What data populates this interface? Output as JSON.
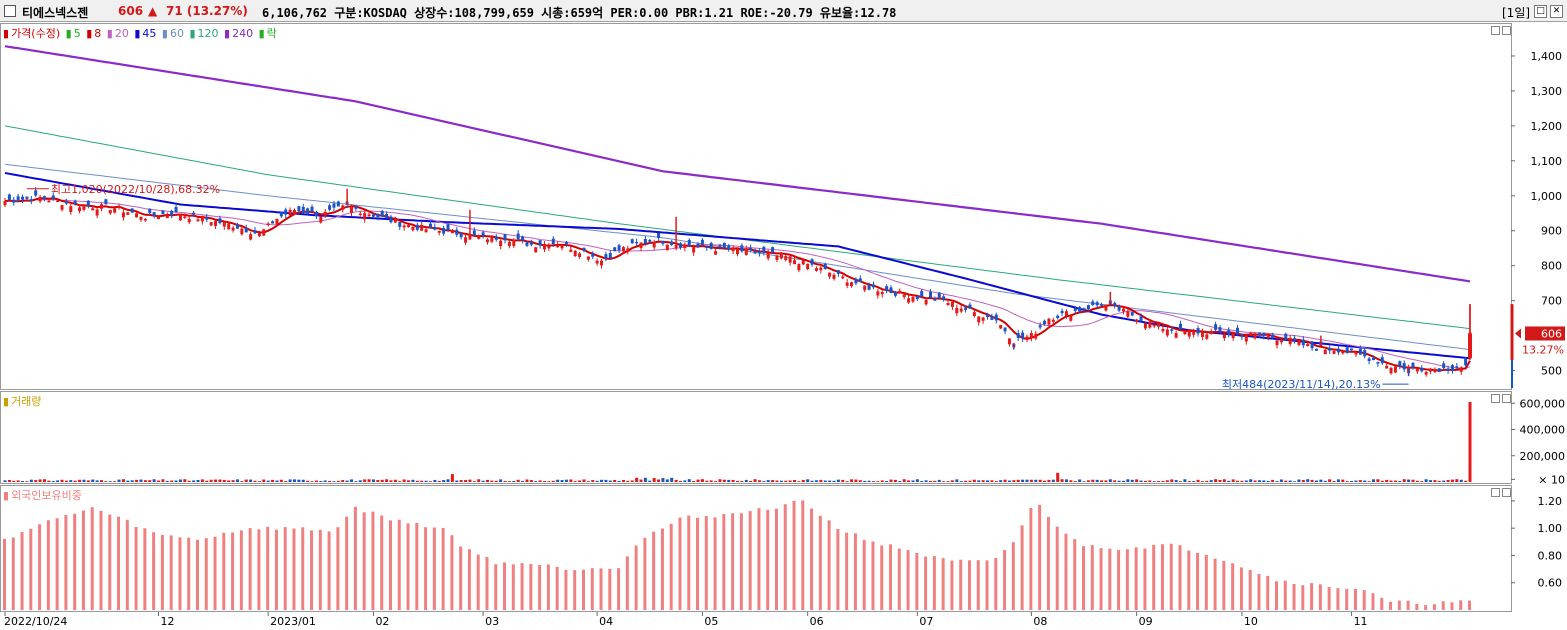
{
  "header": {
    "name": "티에스넥스젠",
    "price": "606",
    "arrow": "▲",
    "change": "71 (13.27%)",
    "info": "6,106,762  구분:KOSDAQ 상장수:108,799,659 시총:659억 PER:0.00 PBR:1.21 ROE:-20.79 유보율:12.78",
    "period": "[1일]",
    "restore_label": "□",
    "close_label": "✕"
  },
  "colors": {
    "up": "#e21a1a",
    "down": "#1a55c8",
    "ma5": "#d40000",
    "ma20": "#c060c0",
    "ma45": "#0a0ad2",
    "ma60": "#6e8ec8",
    "ma120": "#2aa87a",
    "ma240": "#8a2ac8",
    "foreign": "#f08080"
  },
  "price_legend": {
    "base": "가격(수정)",
    "ma5": "5",
    "ma8": "8",
    "ma20": "20",
    "ma45": "45",
    "ma60": "60",
    "ma120": "120",
    "ma240": "240",
    "fall": "락"
  },
  "volume_legend": "거래량",
  "foreign_legend": "외국인보유비중",
  "annotations": {
    "high": "최고1,020(2022/10/28),68.32%",
    "low": "최저484(2023/11/14),20.13%"
  },
  "current_tag": {
    "price": "606",
    "pct": "13.27%"
  },
  "chart_data": [
    {
      "type": "candlestick",
      "name": "price",
      "y_ticks": [
        "1,400",
        "1,300",
        "1,200",
        "1,100",
        "1,000",
        "900",
        "800",
        "700",
        "500"
      ],
      "ylim": [
        450,
        1480
      ],
      "x_ticks": [
        "2022/10/24",
        "12",
        "2023/01",
        "02",
        "03",
        "04",
        "05",
        "06",
        "07",
        "08",
        "09",
        "10",
        "11"
      ],
      "waypoints": [
        [
          0,
          985
        ],
        [
          8,
          995
        ],
        [
          15,
          975
        ],
        [
          25,
          965
        ],
        [
          32,
          940
        ],
        [
          38,
          950
        ],
        [
          45,
          935
        ],
        [
          52,
          915
        ],
        [
          58,
          890
        ],
        [
          62,
          935
        ],
        [
          66,
          960
        ],
        [
          72,
          945
        ],
        [
          78,
          970
        ],
        [
          84,
          945
        ],
        [
          90,
          920
        ],
        [
          96,
          905
        ],
        [
          102,
          895
        ],
        [
          108,
          880
        ],
        [
          114,
          880
        ],
        [
          120,
          860
        ],
        [
          126,
          865
        ],
        [
          132,
          840
        ],
        [
          136,
          815
        ],
        [
          140,
          845
        ],
        [
          144,
          860
        ],
        [
          148,
          875
        ],
        [
          154,
          860
        ],
        [
          160,
          850
        ],
        [
          166,
          845
        ],
        [
          172,
          835
        ],
        [
          178,
          825
        ],
        [
          184,
          800
        ],
        [
          190,
          770
        ],
        [
          196,
          740
        ],
        [
          202,
          725
        ],
        [
          208,
          710
        ],
        [
          214,
          700
        ],
        [
          220,
          670
        ],
        [
          226,
          645
        ],
        [
          230,
          585
        ],
        [
          234,
          600
        ],
        [
          238,
          650
        ],
        [
          244,
          670
        ],
        [
          250,
          690
        ],
        [
          256,
          665
        ],
        [
          262,
          630
        ],
        [
          268,
          610
        ],
        [
          274,
          610
        ],
        [
          280,
          605
        ],
        [
          286,
          600
        ],
        [
          292,
          590
        ],
        [
          298,
          565
        ],
        [
          304,
          560
        ],
        [
          310,
          540
        ],
        [
          316,
          512
        ],
        [
          322,
          505
        ],
        [
          328,
          505
        ],
        [
          333,
          512
        ],
        [
          334,
          600
        ]
      ],
      "spikes": [
        [
          78,
          1020
        ],
        [
          106,
          960
        ],
        [
          153,
          940
        ],
        [
          230,
          560
        ],
        [
          252,
          725
        ],
        [
          300,
          600
        ],
        [
          320,
          484
        ],
        [
          334,
          690
        ]
      ]
    },
    {
      "type": "line",
      "name": "moving_averages",
      "series": [
        {
          "name": "240",
          "values": [
            [
              0,
              1428
            ],
            [
              80,
              1270
            ],
            [
              150,
              1070
            ],
            [
              250,
              920
            ],
            [
              334,
              755
            ]
          ]
        },
        {
          "name": "120",
          "values": [
            [
              0,
              1200
            ],
            [
              60,
              1060
            ],
            [
              140,
              920
            ],
            [
              240,
              760
            ],
            [
              334,
              620
            ]
          ]
        },
        {
          "name": "60",
          "values": [
            [
              0,
              1090
            ],
            [
              60,
              1000
            ],
            [
              150,
              880
            ],
            [
              230,
              720
            ],
            [
              334,
              560
            ]
          ]
        },
        {
          "name": "45",
          "values": [
            [
              0,
              1065
            ],
            [
              40,
              975
            ],
            [
              70,
              945
            ],
            [
              100,
              925
            ],
            [
              140,
              905
            ],
            [
              190,
              855
            ],
            [
              220,
              760
            ],
            [
              250,
              660
            ],
            [
              270,
              615
            ],
            [
              334,
              535
            ]
          ]
        }
      ]
    },
    {
      "type": "bar",
      "name": "volume",
      "y_ticks": [
        "600,000",
        "400,000",
        "200,000",
        "× 10"
      ],
      "ylim": [
        0,
        640000
      ],
      "baseline": 18000,
      "spikes": [
        [
          102,
          60000
        ],
        [
          144,
          32000
        ],
        [
          146,
          32000
        ],
        [
          148,
          30000
        ],
        [
          150,
          30000
        ],
        [
          152,
          32000
        ],
        [
          240,
          70000
        ],
        [
          242,
          20000
        ],
        [
          300,
          18000
        ],
        [
          334,
          610000
        ]
      ]
    },
    {
      "type": "bar",
      "name": "foreign_ownership",
      "y_ticks": [
        "1.20",
        "1.00",
        "0.80",
        "0.60"
      ],
      "ylim": [
        0.4,
        1.28
      ],
      "waypoints": [
        [
          0,
          0.92
        ],
        [
          10,
          1.05
        ],
        [
          20,
          1.15
        ],
        [
          28,
          1.05
        ],
        [
          35,
          0.95
        ],
        [
          45,
          0.92
        ],
        [
          55,
          1.0
        ],
        [
          65,
          1.0
        ],
        [
          75,
          0.98
        ],
        [
          80,
          1.15
        ],
        [
          90,
          1.05
        ],
        [
          100,
          1.0
        ],
        [
          105,
          0.85
        ],
        [
          112,
          0.75
        ],
        [
          120,
          0.74
        ],
        [
          130,
          0.7
        ],
        [
          140,
          0.72
        ],
        [
          145,
          0.92
        ],
        [
          155,
          1.08
        ],
        [
          165,
          1.1
        ],
        [
          175,
          1.15
        ],
        [
          182,
          1.2
        ],
        [
          190,
          1.0
        ],
        [
          200,
          0.88
        ],
        [
          205,
          0.85
        ],
        [
          210,
          0.8
        ],
        [
          215,
          0.76
        ],
        [
          225,
          0.75
        ],
        [
          230,
          0.9
        ],
        [
          235,
          1.2
        ],
        [
          240,
          1.02
        ],
        [
          245,
          0.88
        ],
        [
          255,
          0.85
        ],
        [
          265,
          0.88
        ],
        [
          270,
          0.85
        ],
        [
          280,
          0.75
        ],
        [
          290,
          0.62
        ],
        [
          300,
          0.58
        ],
        [
          310,
          0.55
        ],
        [
          315,
          0.46
        ],
        [
          324,
          0.45
        ],
        [
          325,
          0.45
        ],
        [
          334,
          0.46
        ]
      ]
    }
  ]
}
